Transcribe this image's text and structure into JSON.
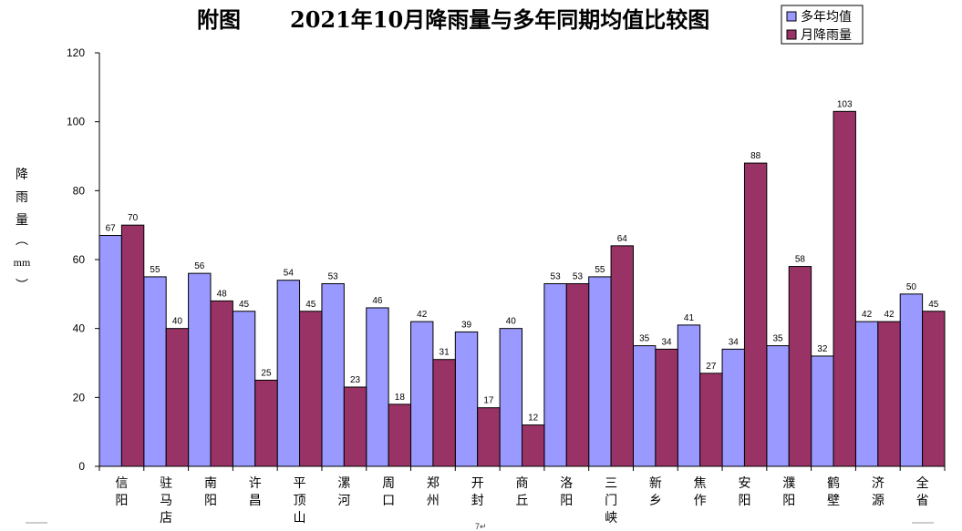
{
  "chart_data": {
    "type": "bar",
    "title": "附图 2021年10月降雨量与多年同期均值比较图",
    "title_parts": [
      "附图",
      "2021年10月降雨量与多年同期均值比较图"
    ],
    "ylabel": "降雨量（mm）",
    "ylabel_chars": [
      "降",
      "雨",
      "量",
      "︵",
      "mm",
      "︶"
    ],
    "ylim": [
      0,
      120
    ],
    "yticks": [
      0,
      20,
      40,
      60,
      80,
      100,
      120
    ],
    "grid": false,
    "legend_position": "top-right",
    "categories": [
      "信阳",
      "驻马店",
      "南阳",
      "许昌",
      "平顶山",
      "漯河",
      "周口",
      "郑州",
      "开封",
      "商丘",
      "洛阳",
      "三门峡",
      "新乡",
      "焦作",
      "安阳",
      "濮阳",
      "鹤壁",
      "济源",
      "全省"
    ],
    "series": [
      {
        "name": "多年均值",
        "color": "#9999ff",
        "values": [
          67,
          55,
          56,
          45,
          54,
          53,
          46,
          42,
          39,
          40,
          53,
          55,
          35,
          41,
          34,
          35,
          32,
          42,
          50
        ]
      },
      {
        "name": "月降雨量",
        "color": "#993366",
        "values": [
          70,
          40,
          48,
          25,
          45,
          23,
          18,
          31,
          17,
          12,
          53,
          64,
          34,
          27,
          88,
          58,
          103,
          42,
          45
        ]
      }
    ]
  },
  "footer": {
    "mark_left": "↵",
    "page_mark": "7↵"
  }
}
